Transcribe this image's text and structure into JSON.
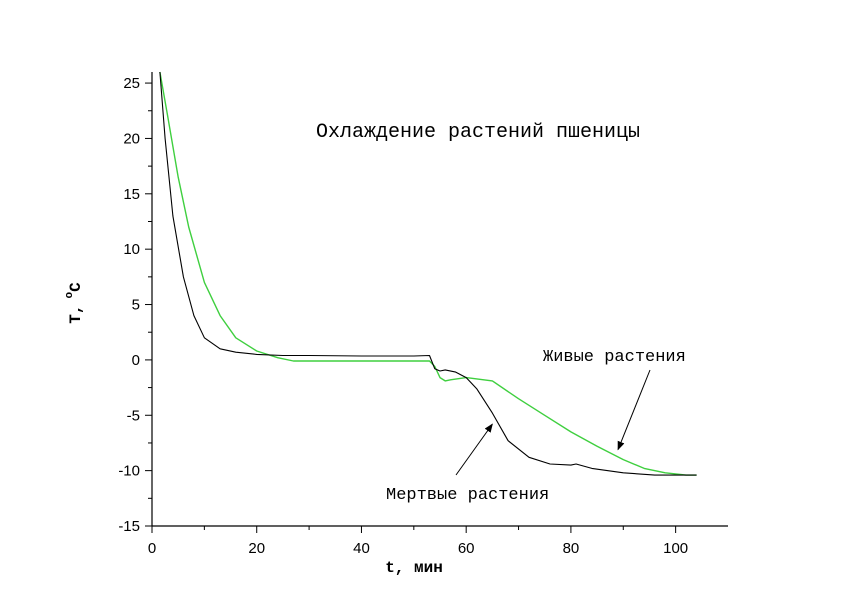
{
  "chart_data": {
    "type": "line",
    "title": "Охлаждение растений пшеницы",
    "xlabel": "t, мин",
    "ylabel": "T, °C",
    "ylabel_parts": {
      "symbol": "T,",
      "degree": "o",
      "unit": "C"
    },
    "xlim": [
      0,
      110
    ],
    "ylim": [
      -15,
      26
    ],
    "x_ticks": [
      0,
      20,
      40,
      60,
      80,
      100
    ],
    "y_ticks": [
      -15,
      -10,
      -5,
      0,
      5,
      10,
      15,
      20,
      25
    ],
    "grid": false,
    "colors": {
      "live": "#3fcf3f",
      "dead": "#000000"
    },
    "series": [
      {
        "name": "Живые растения",
        "color": "#3fcf3f",
        "x": [
          1.5,
          3,
          5,
          7,
          10,
          13,
          16,
          20,
          24,
          27,
          35,
          45,
          53,
          54,
          55,
          56,
          57,
          60,
          65,
          70,
          75,
          80,
          85,
          90,
          94,
          98,
          102,
          104
        ],
        "y": [
          26,
          22,
          16.5,
          12,
          7,
          4,
          2,
          0.8,
          0.2,
          -0.1,
          -0.1,
          -0.1,
          -0.1,
          -0.6,
          -1.6,
          -1.9,
          -1.8,
          -1.6,
          -1.9,
          -3.5,
          -5.0,
          -6.5,
          -7.8,
          -9.0,
          -9.8,
          -10.2,
          -10.4,
          -10.4
        ]
      },
      {
        "name": "Мертвые растения",
        "color": "#000000",
        "x": [
          1.5,
          2.5,
          4,
          6,
          8,
          10,
          13,
          16,
          20,
          25,
          30,
          40,
          50,
          53,
          54,
          55,
          56,
          58,
          60,
          62,
          65,
          68,
          72,
          76,
          80,
          81,
          84,
          90,
          96,
          100,
          104
        ],
        "y": [
          26,
          20,
          13,
          7.5,
          4,
          2,
          1,
          0.7,
          0.5,
          0.4,
          0.4,
          0.35,
          0.35,
          0.4,
          -0.8,
          -1.0,
          -0.9,
          -1.1,
          -1.6,
          -2.6,
          -4.8,
          -7.3,
          -8.8,
          -9.4,
          -9.5,
          -9.4,
          -9.8,
          -10.2,
          -10.4,
          -10.4,
          -10.4
        ]
      }
    ],
    "annotations": [
      {
        "text": "Живые растения",
        "series": 0,
        "arrow_to": [
          89,
          -8.1
        ]
      },
      {
        "text": "Мертвые растения",
        "series": 1,
        "arrow_to": [
          65,
          -5.8
        ]
      }
    ]
  }
}
